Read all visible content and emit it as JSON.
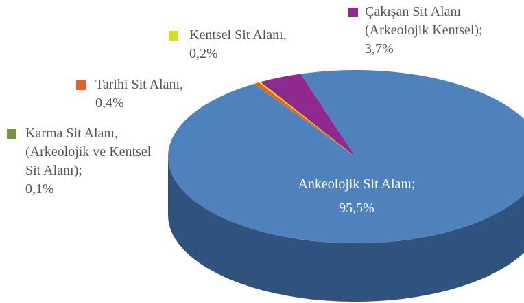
{
  "chart_data": {
    "type": "pie3d",
    "categories": [
      "Ankeolojik Sit Alanı;",
      "Karma Sit Alanı, (Arkeolojik ve Kentsel Sit Alanı);",
      "Tarihi Sit Alanı,",
      "Kentsel Sit Alanı,",
      "Çakışan Sit Alanı (Arkeolojik Kentsel);"
    ],
    "values": [
      95.5,
      0.1,
      0.4,
      0.2,
      3.7
    ],
    "value_labels": [
      "95,5%",
      "0,1%",
      "0,4%",
      "0,2%",
      "3,7%"
    ],
    "colors": [
      "#4f81bd",
      "#77933c",
      "#f05a28",
      "#d4df26",
      "#8e2a8f"
    ],
    "side_colors": [
      "#2f527e",
      "#4a5e25",
      "#a33d17",
      "#8f9717",
      "#5b1a5c"
    ]
  }
}
